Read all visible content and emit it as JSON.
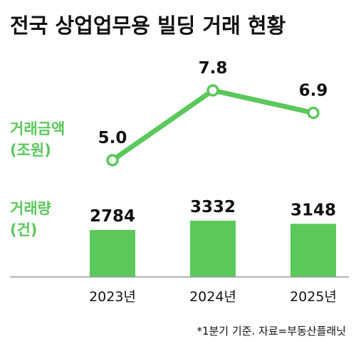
{
  "title": "전국 상업업무용 빌딩 거래 현황",
  "footnote": "*1분기 기준. 자료=부동산플래닛",
  "colors": {
    "accent": "#5ac85a",
    "axis": "#999999",
    "text": "#111111"
  },
  "chart_data": [
    {
      "type": "line",
      "label_line1": "거래금액",
      "label_line2": "(조원)",
      "categories": [
        "2023년",
        "2024년",
        "2025년"
      ],
      "values": [
        5.0,
        7.8,
        6.9
      ],
      "value_labels": [
        "5.0",
        "7.8",
        "6.9"
      ]
    },
    {
      "type": "bar",
      "label_line1": "거래량",
      "label_line2": "(건)",
      "categories": [
        "2023년",
        "2024년",
        "2025년"
      ],
      "values": [
        2784,
        3332,
        3148
      ],
      "value_labels": [
        "2784",
        "3332",
        "3148"
      ]
    }
  ]
}
